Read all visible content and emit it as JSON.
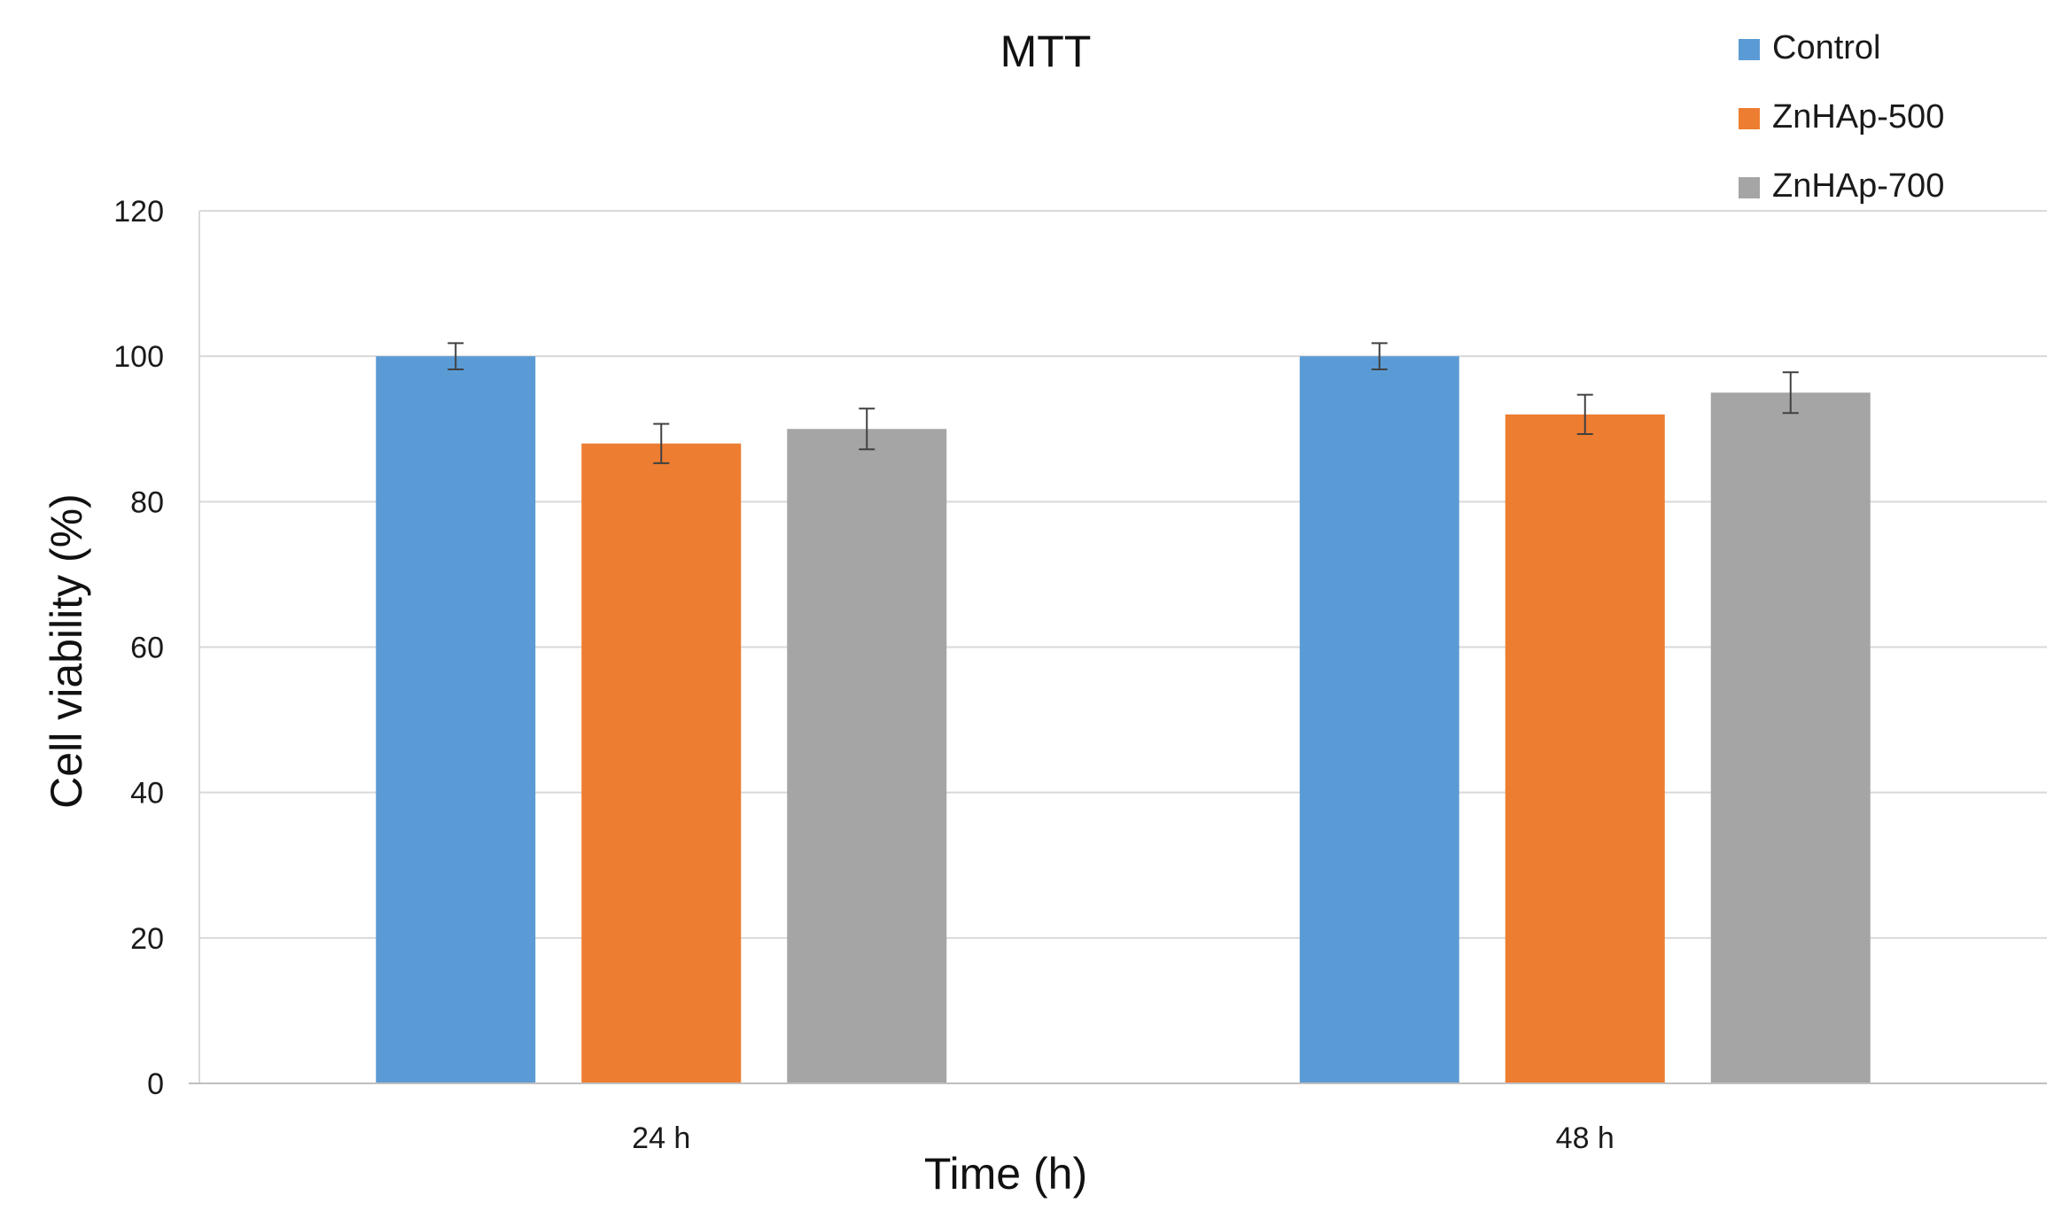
{
  "chart_data": {
    "type": "bar",
    "title": "MTT",
    "xlabel": "Time (h)",
    "ylabel": "Cell viability (%)",
    "categories": [
      "24 h",
      "48 h"
    ],
    "ylim": [
      0,
      120
    ],
    "yticks": [
      0,
      20,
      40,
      60,
      80,
      100,
      120
    ],
    "grid": true,
    "legend": "top-right",
    "series": [
      {
        "name": "Control",
        "color": "#5B9BD5",
        "values": [
          100,
          100
        ],
        "errors": [
          1.8,
          1.8
        ]
      },
      {
        "name": "ZnHAp-500",
        "color": "#ED7D31",
        "values": [
          88,
          92
        ],
        "errors": [
          2.7,
          2.7
        ]
      },
      {
        "name": "ZnHAp-700",
        "color": "#A5A5A5",
        "values": [
          90,
          95
        ],
        "errors": [
          2.8,
          2.8
        ]
      }
    ]
  }
}
